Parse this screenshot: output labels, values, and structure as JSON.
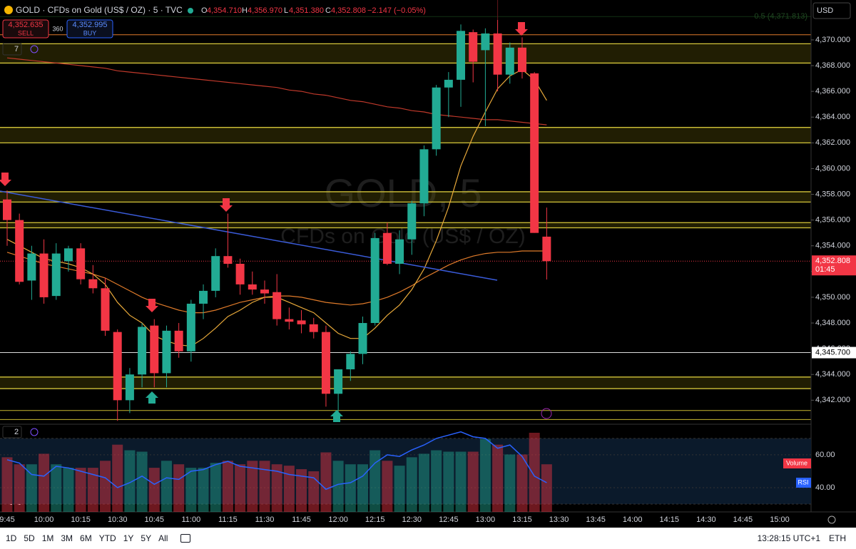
{
  "header": {
    "symbol": "GOLD · CFDs on Gold (US$ / OZ) · 5 · TVC",
    "o_label": "O",
    "open": "4,354.710",
    "h_label": "H",
    "high": "4,356.970",
    "l_label": "L",
    "low": "4,351.380",
    "c_label": "C",
    "close": "4,352.808",
    "change": "−2.147 (−0.05%)",
    "sell_price": "4,352.635",
    "sell": "SELL",
    "spread": "360",
    "buy_price": "4,352.995",
    "buy": "BUY",
    "currency": "USD",
    "indicators_count": "7",
    "pane_count": "2"
  },
  "chart_data": {
    "type": "candlestick",
    "watermark": "GOLD, 5",
    "watermark_sub": "CFDs on Gold (US$ / OZ)",
    "categories": [
      "9:45",
      null,
      null,
      "10:00",
      null,
      null,
      "10:15",
      null,
      null,
      "10:30",
      null,
      null,
      "10:45",
      null,
      null,
      "11:00",
      null,
      null,
      "11:15",
      null,
      null,
      "11:30",
      null,
      null,
      "11:45",
      null,
      null,
      "12:00",
      null,
      null,
      "12:15",
      null,
      null,
      "12:30",
      null,
      null,
      "12:45",
      null,
      null,
      "13:00",
      null,
      null,
      "13:15",
      null,
      null,
      "13:30",
      null,
      null,
      "13:45",
      null,
      null,
      "14:00",
      null,
      null,
      "14:15",
      null,
      null,
      "14:30",
      null,
      null,
      "14:45",
      null,
      null,
      "15:00",
      null,
      null
    ],
    "open": [
      4357.6,
      4356.0,
      4351.3,
      4353.4,
      4350.1,
      4352.8,
      4353.8,
      4351.4,
      4350.7,
      4347.3,
      4342.0,
      4344.0,
      4347.8,
      4344.1,
      4347.4,
      4345.8,
      4349.5,
      4350.5,
      4353.2,
      4352.6,
      4351.0,
      4350.6,
      4350.4,
      4348.3,
      4348.2,
      4347.9,
      4347.3,
      4342.5,
      4344.4,
      4345.6,
      4348.0,
      4355.0,
      4352.6,
      4354.5,
      4357.3,
      4361.5,
      4366.3,
      4366.9,
      4370.6,
      4369.2,
      4370.5,
      4367.3,
      4369.4,
      4367.4,
      4354.71,
      null,
      null,
      null,
      null,
      null,
      null,
      null,
      null,
      null,
      null,
      null,
      null,
      null,
      null,
      null,
      null,
      null,
      null,
      null,
      null,
      null
    ],
    "high": [
      4358.3,
      4356.5,
      4354.0,
      4354.5,
      4354.2,
      4354.0,
      4354.2,
      4352.5,
      4351.5,
      4347.5,
      4344.5,
      4348.0,
      4348.3,
      4347.8,
      4348.0,
      4349.8,
      4351.0,
      4353.8,
      4356.5,
      4353.0,
      4352.0,
      4351.3,
      4351.8,
      4349.2,
      4349.0,
      4348.4,
      4347.8,
      4344.4,
      4345.8,
      4348.5,
      4355.0,
      4355.8,
      4355.2,
      4357.5,
      4361.8,
      4366.5,
      4367.5,
      4371.2,
      4370.8,
      4370.9,
      4373.1,
      4369.8,
      4370.2,
      4367.5,
      4356.97,
      null,
      null,
      null,
      null,
      null,
      null,
      null,
      null,
      null,
      null,
      null,
      null,
      null,
      null,
      null,
      null,
      null,
      null,
      null,
      null,
      null
    ],
    "low": [
      4354.0,
      4351.0,
      4349.8,
      4349.5,
      4349.8,
      4352.0,
      4351.0,
      4350.3,
      4347.0,
      4340.4,
      4341.0,
      4343.0,
      4343.0,
      4343.0,
      4345.3,
      4345.0,
      4348.3,
      4350.0,
      4352.3,
      4350.2,
      4350.2,
      4349.5,
      4347.8,
      4347.5,
      4347.2,
      4346.8,
      4341.5,
      4340.4,
      4343.5,
      4344.8,
      4347.8,
      4352.5,
      4351.8,
      4353.3,
      4356.3,
      4361.0,
      4364.0,
      4364.8,
      4366.7,
      4363.3,
      4366.0,
      4366.6,
      4367.0,
      4355.0,
      4351.38,
      null,
      null,
      null,
      null,
      null,
      null,
      null,
      null,
      null,
      null,
      null,
      null,
      null,
      null,
      null,
      null,
      null,
      null,
      null,
      null,
      null
    ],
    "close": [
      4356.0,
      4351.2,
      4353.4,
      4350.0,
      4353.4,
      4353.8,
      4351.4,
      4350.7,
      4347.4,
      4342.0,
      4344.0,
      4347.7,
      4344.1,
      4347.4,
      4345.8,
      4349.5,
      4350.5,
      4353.2,
      4352.6,
      4351.0,
      4350.6,
      4350.3,
      4348.3,
      4348.1,
      4347.9,
      4347.3,
      4342.5,
      4344.4,
      4345.6,
      4348.0,
      4354.6,
      4352.6,
      4354.5,
      4357.3,
      4361.5,
      4366.3,
      4366.9,
      4370.7,
      4368.3,
      4370.5,
      4367.3,
      4369.4,
      4367.5,
      4355.0,
      4352.808,
      null,
      null,
      null,
      null,
      null,
      null,
      null,
      null,
      null,
      null,
      null,
      null,
      null,
      null,
      null,
      null,
      null,
      null,
      null,
      null,
      null
    ],
    "up_color": "#22ab94",
    "down_color": "#f23645",
    "ylim": [
      4340.3,
      4373.1
    ],
    "yticks": [
      {
        "value": 4342,
        "label": "4,342.000"
      },
      {
        "value": 4344,
        "label": "4,344.000"
      },
      {
        "value": 4346,
        "label": "4,346.000"
      },
      {
        "value": 4348,
        "label": "4,348.000"
      },
      {
        "value": 4350,
        "label": "4,350.000"
      },
      {
        "value": 4352,
        "label": "4,352.000"
      },
      {
        "value": 4354,
        "label": "4,354.000"
      },
      {
        "value": 4356,
        "label": "4,356.000"
      },
      {
        "value": 4358,
        "label": "4,358.000"
      },
      {
        "value": 4360,
        "label": "4,360.000"
      },
      {
        "value": 4362,
        "label": "4,362.000"
      },
      {
        "value": 4364,
        "label": "4,364.000"
      },
      {
        "value": 4366,
        "label": "4,366.000"
      },
      {
        "value": 4368,
        "label": "4,368.000"
      },
      {
        "value": 4370,
        "label": "4,370.000"
      }
    ],
    "price_label": {
      "value": 4352.808,
      "label": "4,352.808"
    },
    "countdown": "01:45",
    "level_label": {
      "value": 4345.7,
      "label": "4,345.700"
    },
    "fib": {
      "value": 4371.813,
      "label": "0.5 (4,371.813)"
    },
    "zones": [
      [
        4369.7,
        4368.2
      ],
      [
        4363.2,
        4362.0
      ],
      [
        4358.2,
        4357.4
      ],
      [
        4355.8,
        4355.4
      ],
      [
        4343.8,
        4342.9
      ]
    ],
    "levels": [
      4370.4,
      4341.2,
      4340.5
    ],
    "overlays": [
      {
        "color": "#c0392b",
        "values": [
          4368.6,
          4368.5,
          4368.4,
          4368.3,
          4368.2,
          4368.1,
          4368.0,
          4367.9,
          4367.8,
          4367.6,
          4367.5,
          4367.4,
          4367.3,
          4367.2,
          4367.1,
          4367.0,
          4366.9,
          4366.8,
          4366.7,
          4366.6,
          4366.5,
          4366.4,
          4366.3,
          4366.1,
          4366.0,
          4365.8,
          4365.7,
          4365.5,
          4365.3,
          4365.2,
          4365.0,
          4364.8,
          4364.7,
          4364.5,
          4364.4,
          4364.2,
          4364.1,
          4364.0,
          4363.9,
          4363.8,
          4363.8,
          4363.7,
          4363.6,
          4363.5,
          4363.4,
          null,
          null,
          null,
          null,
          null,
          null,
          null,
          null,
          null,
          null,
          null,
          null,
          null,
          null,
          null,
          null,
          null,
          null,
          null,
          null,
          null
        ]
      },
      {
        "color": "#e07b2a",
        "values": [
          4353.5,
          4353.2,
          4352.9,
          4352.6,
          4352.4,
          4352.2,
          4352.0,
          4351.8,
          4351.5,
          4351.0,
          4350.5,
          4350.0,
          4349.6,
          4349.3,
          4349.0,
          4348.8,
          4348.8,
          4349.0,
          4349.3,
          4349.6,
          4349.8,
          4350.0,
          4350.1,
          4350.1,
          4350.0,
          4349.8,
          4349.6,
          4349.5,
          4349.4,
          4349.5,
          4349.7,
          4350.0,
          4350.4,
          4350.9,
          4351.5,
          4352.0,
          4352.5,
          4352.9,
          4353.2,
          4353.4,
          4353.5,
          4353.5,
          4353.6,
          4353.6,
          4353.6,
          null,
          null,
          null,
          null,
          null,
          null,
          null,
          null,
          null,
          null,
          null,
          null,
          null,
          null,
          null,
          null,
          null,
          null,
          null,
          null,
          null
        ]
      },
      {
        "color": "#e8a93a",
        "values": [
          4354.5,
          4354.0,
          4353.5,
          4353.0,
          4352.8,
          4352.6,
          4352.3,
          4351.8,
          4351.0,
          4349.6,
          4348.6,
          4348.0,
          4347.0,
          4346.6,
          4346.3,
          4346.2,
          4346.8,
          4347.6,
          4348.5,
          4349.0,
          4349.6,
          4350.0,
          4350.0,
          4349.6,
          4349.2,
          4348.8,
          4348.0,
          4347.2,
          4346.8,
          4346.8,
          4347.6,
          4348.6,
          4349.4,
          4350.6,
          4352.2,
          4354.4,
          4357.0,
          4360.2,
          4362.5,
          4364.4,
          4366.2,
          4367.2,
          4367.7,
          4366.9,
          4365.3,
          null,
          null,
          null,
          null,
          null,
          null,
          null,
          null,
          null,
          null,
          null,
          null,
          null,
          null,
          null,
          null,
          null,
          null,
          null,
          null,
          null
        ]
      }
    ],
    "volume": {
      "name": "Volume",
      "ylim": [
        0,
        115
      ],
      "values": [
        78,
        68,
        68,
        83,
        68,
        63,
        63,
        63,
        73,
        96,
        88,
        86,
        63,
        73,
        68,
        63,
        63,
        70,
        73,
        68,
        73,
        73,
        68,
        66,
        61,
        58,
        85,
        73,
        68,
        68,
        88,
        73,
        66,
        78,
        83,
        88,
        86,
        86,
        86,
        104,
        96,
        82,
        82,
        113,
        68,
        null,
        null,
        null,
        null,
        null,
        null,
        null,
        null,
        null,
        null,
        null,
        null,
        null,
        null,
        null,
        null,
        null,
        null,
        null,
        null,
        null
      ]
    },
    "rsi": {
      "name": "RSI",
      "color": "#2962ff",
      "ylim": [
        25.2,
        74.3
      ],
      "band": [
        30,
        70
      ],
      "yticks": [
        {
          "value": 60,
          "label": "60.00"
        },
        {
          "value": 40,
          "label": "40.00"
        }
      ],
      "values": [
        57,
        55,
        48,
        47,
        53,
        52,
        50,
        48,
        46,
        40,
        43,
        47,
        42,
        46,
        45,
        50,
        51,
        54,
        56,
        53,
        52,
        51,
        50,
        48,
        47,
        46,
        39,
        42,
        43,
        47,
        55,
        60,
        59,
        63,
        66,
        70,
        72,
        74,
        71,
        70,
        64,
        66,
        59,
        47,
        43,
        null,
        null,
        null,
        null,
        null,
        null,
        null,
        null,
        null,
        null,
        null,
        null,
        null,
        null,
        null,
        null,
        null,
        null,
        null,
        null,
        null
      ]
    }
  },
  "toolbar": {
    "ranges": [
      "1D",
      "5D",
      "1M",
      "3M",
      "6M",
      "YTD",
      "1Y",
      "5Y",
      "All"
    ],
    "clock": "13:28:15 UTC+1",
    "session": "ETH"
  }
}
